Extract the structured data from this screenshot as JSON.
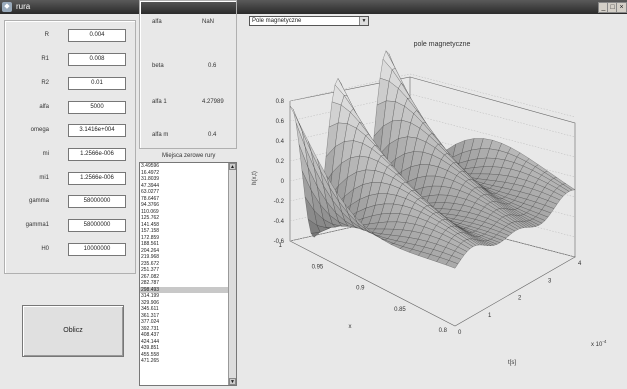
{
  "window": {
    "title": "rura",
    "controls": [
      "_",
      "□",
      "×"
    ]
  },
  "params": [
    {
      "label": "R",
      "value": "0.004"
    },
    {
      "label": "R1",
      "value": "0.008"
    },
    {
      "label": "R2",
      "value": "0.01"
    },
    {
      "label": "alfa",
      "value": "5000"
    },
    {
      "label": "omega",
      "value": "3.1416e+004"
    },
    {
      "label": "mi",
      "value": "1.2566e-006"
    },
    {
      "label": "mi1",
      "value": "1.2566e-006"
    },
    {
      "label": "gamma",
      "value": "58000000"
    },
    {
      "label": "gamma1",
      "value": "58000000"
    },
    {
      "label": "H0",
      "value": "10000000"
    }
  ],
  "readouts": [
    {
      "label": "alfa",
      "value": "NaN"
    },
    {
      "label": "beta",
      "value": "0.6"
    },
    {
      "label": "alfa 1",
      "value": "4.27989"
    },
    {
      "label": "alfa m",
      "value": "0.4"
    }
  ],
  "list": {
    "title": "Miejsca zerowe rury",
    "items": [
      "3.49596",
      "16.4972",
      "31.8039",
      "47.3944",
      "63.0277",
      "78.6467",
      "94.3766",
      "110.069",
      "125.762",
      "141.458",
      "157.158",
      "172.859",
      "188.561",
      "204.264",
      "219.968",
      "235.672",
      "251.377",
      "267.082",
      "282.787",
      "298.493",
      "314.199",
      "329.906",
      "345.611",
      "361.317",
      "377.024",
      "392.731",
      "408.437",
      "424.144",
      "439.851",
      "455.558",
      "471.265"
    ],
    "selected_index": 19
  },
  "compute_button": "Oblicz",
  "plot_selector": "Pole magnetyczne",
  "chart_data": {
    "type": "surface",
    "title": "pole magnetyczne",
    "zlabel": "h(x,t)",
    "xlabel": "x",
    "ylabel": "t[s]",
    "zlim": [
      -0.6,
      0.8
    ],
    "zticks": [
      "0.8",
      "0.6",
      "0.4",
      "0.2",
      "0",
      "-0.2",
      "-0.4",
      "-0.6"
    ],
    "xticks": [
      "1",
      "0.95",
      "0.9",
      "0.85",
      "0.8"
    ],
    "tticks": [
      "0",
      "1",
      "2",
      "3",
      "4"
    ],
    "t_multiplier": "x 10",
    "t_exponent": "-4",
    "grid": true,
    "colormap": "gray"
  }
}
